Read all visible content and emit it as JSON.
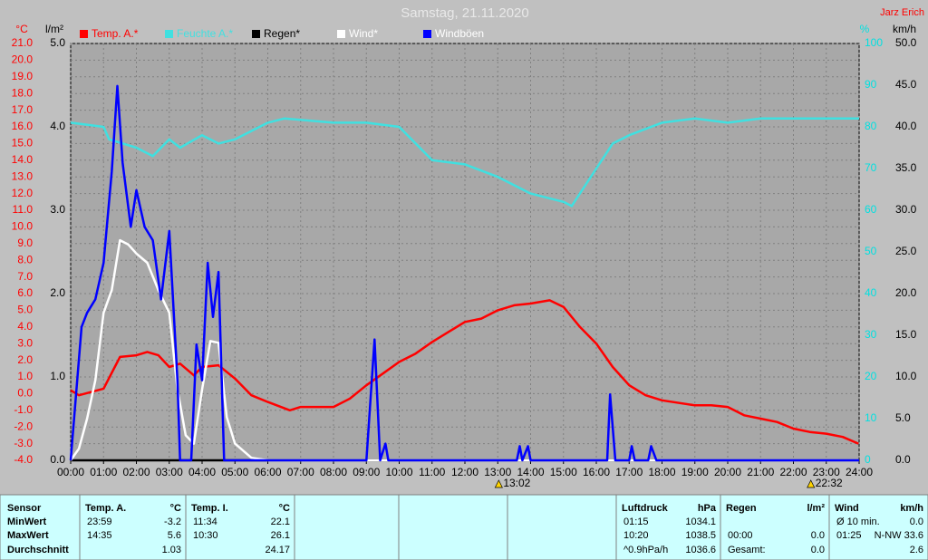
{
  "chart_data": {
    "type": "line",
    "title": "Samstag, 21.11.2020",
    "author": "Jarz Erich",
    "xlim": [
      0,
      24
    ],
    "xticks": [
      {
        "value": 0,
        "label": "00:00"
      },
      {
        "value": 1,
        "label": "01:00"
      },
      {
        "value": 2,
        "label": "02:00"
      },
      {
        "value": 3,
        "label": "03:00"
      },
      {
        "value": 4,
        "label": "04:00"
      },
      {
        "value": 5,
        "label": "05:00"
      },
      {
        "value": 6,
        "label": "06:00"
      },
      {
        "value": 7,
        "label": "07:00"
      },
      {
        "value": 8,
        "label": "08:00"
      },
      {
        "value": 9,
        "label": "09:00"
      },
      {
        "value": 10,
        "label": "10:00"
      },
      {
        "value": 11,
        "label": "11:00"
      },
      {
        "value": 12,
        "label": "12:00"
      },
      {
        "value": 13,
        "label": "13:00"
      },
      {
        "value": 14,
        "label": "14:00"
      },
      {
        "value": 15,
        "label": "15:00"
      },
      {
        "value": 16,
        "label": "16:00"
      },
      {
        "value": 17,
        "label": "17:00"
      },
      {
        "value": 18,
        "label": "18:00"
      },
      {
        "value": 19,
        "label": "19:00"
      },
      {
        "value": 20,
        "label": "20:00"
      },
      {
        "value": 21,
        "label": "21:00"
      },
      {
        "value": 22,
        "label": "22:00"
      },
      {
        "value": 23,
        "label": "23:00"
      },
      {
        "value": 24,
        "label": "24:00"
      }
    ],
    "grid": true,
    "axes": [
      {
        "label": "°C",
        "color": "#ff0000",
        "lim": [
          -4,
          21
        ],
        "ticks": [
          {
            "value": -4,
            "label": "-4.0"
          },
          {
            "value": -3,
            "label": "-3.0"
          },
          {
            "value": -2,
            "label": "-2.0"
          },
          {
            "value": -1,
            "label": "-1.0"
          },
          {
            "value": 0,
            "label": "0.0"
          },
          {
            "value": 1,
            "label": "1.0"
          },
          {
            "value": 2,
            "label": "2.0"
          },
          {
            "value": 3,
            "label": "3.0"
          },
          {
            "value": 4,
            "label": "4.0"
          },
          {
            "value": 5,
            "label": "5.0"
          },
          {
            "value": 6,
            "label": "6.0"
          },
          {
            "value": 7,
            "label": "7.0"
          },
          {
            "value": 8,
            "label": "8.0"
          },
          {
            "value": 9,
            "label": "9.0"
          },
          {
            "value": 10,
            "label": "10.0"
          },
          {
            "value": 11,
            "label": "11.0"
          },
          {
            "value": 12,
            "label": "12.0"
          },
          {
            "value": 13,
            "label": "13.0"
          },
          {
            "value": 14,
            "label": "14.0"
          },
          {
            "value": 15,
            "label": "15.0"
          },
          {
            "value": 16,
            "label": "16.0"
          },
          {
            "value": 17,
            "label": "17.0"
          },
          {
            "value": 18,
            "label": "18.0"
          },
          {
            "value": 19,
            "label": "19.0"
          },
          {
            "value": 20,
            "label": "20.0"
          },
          {
            "value": 21,
            "label": "21.0"
          }
        ]
      },
      {
        "label": "l/m²",
        "color": "#000000",
        "lim": [
          0,
          5
        ],
        "ticks": [
          {
            "value": 0,
            "label": "0.0"
          },
          {
            "value": 1,
            "label": "1.0"
          },
          {
            "value": 2,
            "label": "2.0"
          },
          {
            "value": 3,
            "label": "3.0"
          },
          {
            "value": 4,
            "label": "4.0"
          },
          {
            "value": 5,
            "label": "5.0"
          }
        ]
      },
      {
        "label": "%",
        "color": "#00e0e0",
        "lim": [
          0,
          100
        ],
        "ticks": [
          0,
          10,
          20,
          30,
          40,
          50,
          60,
          70,
          80,
          90,
          100
        ]
      },
      {
        "label": "km/h",
        "color": "#000000",
        "lim": [
          0,
          50
        ],
        "ticks": [
          {
            "value": 0,
            "label": "0.0"
          },
          {
            "value": 5,
            "label": "5.0"
          },
          {
            "value": 10,
            "label": "10.0"
          },
          {
            "value": 15,
            "label": "15.0"
          },
          {
            "value": 20,
            "label": "20.0"
          },
          {
            "value": 25,
            "label": "25.0"
          },
          {
            "value": 30,
            "label": "30.0"
          },
          {
            "value": 35,
            "label": "35.0"
          },
          {
            "value": 40,
            "label": "40.0"
          },
          {
            "value": 45,
            "label": "45.0"
          },
          {
            "value": 50,
            "label": "50.0"
          }
        ]
      }
    ],
    "series": [
      {
        "name": "Temp. A.*",
        "color": "#ff0000",
        "axis": 0,
        "x": [
          0,
          0.25,
          1,
          1.5,
          2,
          2.33,
          2.67,
          3,
          3.33,
          3.75,
          4,
          4.5,
          5,
          5.5,
          6,
          6.67,
          7,
          8,
          8.5,
          9,
          9.5,
          10,
          10.5,
          11,
          11.5,
          12,
          12.5,
          13,
          13.5,
          14,
          14.58,
          15,
          15.5,
          16,
          16.5,
          17,
          17.5,
          18,
          19,
          19.5,
          20,
          20.5,
          21,
          21.5,
          22,
          22.5,
          23,
          23.5,
          23.98
        ],
        "values": [
          0.2,
          -0.1,
          0.3,
          2.2,
          2.3,
          2.5,
          2.3,
          1.6,
          1.8,
          1.1,
          1.6,
          1.7,
          0.9,
          -0.1,
          -0.5,
          -1.0,
          -0.8,
          -0.8,
          -0.3,
          0.5,
          1.2,
          1.9,
          2.4,
          3.1,
          3.7,
          4.3,
          4.5,
          5.0,
          5.3,
          5.4,
          5.6,
          5.2,
          4.0,
          3.0,
          1.6,
          0.5,
          -0.1,
          -0.4,
          -0.7,
          -0.7,
          -0.8,
          -1.3,
          -1.5,
          -1.7,
          -2.1,
          -2.3,
          -2.4,
          -2.6,
          -3.0
        ]
      },
      {
        "name": "Feuchte A.*",
        "color": "#40e0e0",
        "axis": 2,
        "x": [
          0,
          1,
          1.17,
          2,
          2.5,
          3,
          3.33,
          4,
          4.5,
          5,
          6,
          6.5,
          8,
          9,
          10,
          11,
          12,
          13,
          14,
          15,
          15.25,
          16,
          16.5,
          17,
          18,
          19,
          20,
          21,
          24
        ],
        "values": [
          81,
          80,
          77,
          75,
          73,
          77,
          75,
          78,
          76,
          77,
          81,
          82,
          81,
          81,
          80,
          72,
          71,
          68,
          64,
          62,
          61,
          70,
          76,
          78,
          81,
          82,
          81,
          82,
          82
        ]
      },
      {
        "name": "Regen*",
        "color": "#000000",
        "axis": 1,
        "x": [
          0,
          24
        ],
        "values": [
          0,
          0
        ]
      },
      {
        "name": "Wind*",
        "color": "#ffffff",
        "axis": 3,
        "x": [
          0,
          0.25,
          0.5,
          0.75,
          1,
          1.25,
          1.5,
          1.75,
          2,
          2.33,
          2.67,
          3,
          3.25,
          3.5,
          3.75,
          4,
          4.25,
          4.5,
          4.75,
          5,
          5.5,
          6,
          24
        ],
        "values": [
          0,
          1.4,
          5.0,
          9.6,
          17.7,
          20.4,
          26.4,
          25.9,
          24.8,
          23.7,
          20.4,
          17.7,
          8.5,
          3.0,
          2.0,
          8.5,
          14.3,
          14.1,
          5.2,
          2.0,
          0.3,
          0,
          0
        ]
      },
      {
        "name": "Windböen",
        "color": "#0000ff",
        "axis": 3,
        "x": [
          0,
          0.33,
          0.5,
          0.75,
          1,
          1.25,
          1.42,
          1.58,
          1.83,
          2,
          2.25,
          2.5,
          2.75,
          3,
          3.25,
          3.33,
          3.67,
          3.83,
          4,
          4.17,
          4.33,
          4.5,
          4.67,
          9,
          9.25,
          9.42,
          9.58,
          9.67,
          13.58,
          13.67,
          13.75,
          13.92,
          14,
          16.33,
          16.42,
          16.58,
          17,
          17.08,
          17.17,
          17.58,
          17.67,
          17.83,
          24
        ],
        "values": [
          0,
          16,
          17.7,
          19.3,
          23.7,
          34.6,
          44.9,
          35.7,
          28,
          32.4,
          28,
          26.4,
          19.3,
          27.5,
          9.6,
          0,
          0,
          13.9,
          9.6,
          23.7,
          17.2,
          22.6,
          0,
          0,
          14.5,
          0,
          2.0,
          0,
          0,
          1.7,
          0,
          1.7,
          0,
          0,
          7.9,
          0,
          0,
          1.7,
          0,
          0,
          1.7,
          0,
          0
        ]
      }
    ],
    "annotations": [
      {
        "x": 13.03,
        "label": "13:02"
      },
      {
        "x": 22.53,
        "label": "22:32"
      }
    ]
  },
  "stats_table": {
    "row_labels": [
      "Sensor",
      "MinWert",
      "MaxWert",
      "Durchschnitt"
    ],
    "columns": [
      {
        "name": "Temp. A.",
        "unit": "°C",
        "rows": [
          {
            "time": "23:59",
            "value": "-3.2"
          },
          {
            "time": "14:35",
            "value": "5.6"
          },
          {
            "value": "1.03"
          }
        ]
      },
      {
        "name": "Temp. I.",
        "unit": "°C",
        "rows": [
          {
            "time": "11:34",
            "value": "22.1"
          },
          {
            "time": "10:30",
            "value": "26.1"
          },
          {
            "value": "24.17"
          }
        ]
      },
      {
        "name": "Luftdruck",
        "unit": "hPa",
        "rows": [
          {
            "time": "01:15",
            "value": "1034.1"
          },
          {
            "time": "10:20",
            "value": "1038.5"
          },
          {
            "time": "^0.9hPa/h",
            "value": "1036.6"
          }
        ]
      },
      {
        "name": "Regen",
        "unit": "l/m²",
        "rows": [
          null,
          {
            "time": "00:00",
            "value": "0.0"
          },
          {
            "time": "Gesamt:",
            "value": "0.0"
          }
        ]
      },
      {
        "name": "Wind",
        "unit": "km/h",
        "rows": [
          {
            "time": "Ø 10 min.",
            "value": "0.0"
          },
          {
            "time": "01:25",
            "value": "N-NW 33.6"
          },
          {
            "value": "2.6"
          }
        ]
      }
    ]
  }
}
